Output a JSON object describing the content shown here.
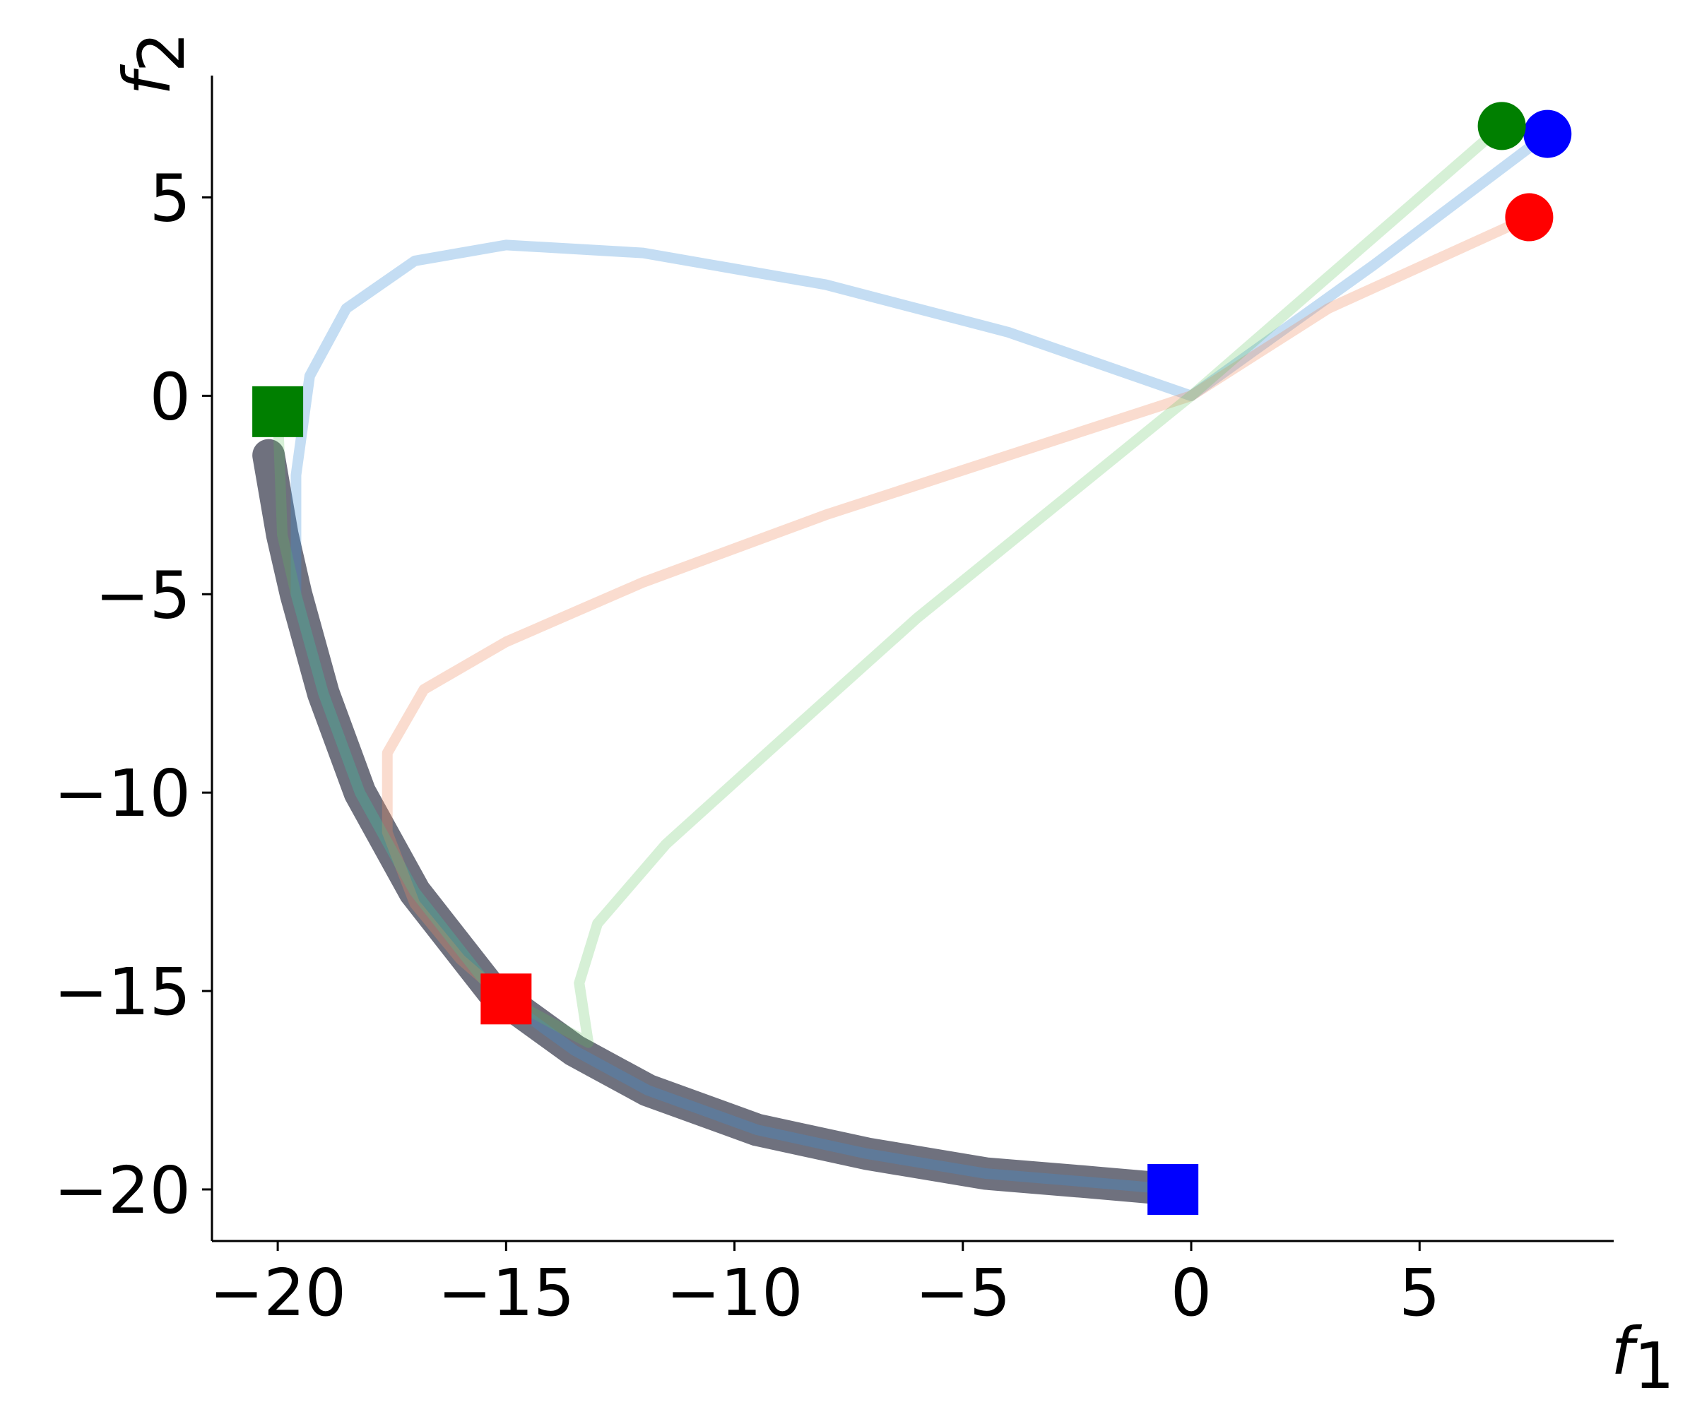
{
  "chart_data": {
    "type": "line",
    "xlabel": {
      "text": "f",
      "subscript": "1"
    },
    "ylabel": {
      "text": "f",
      "subscript": "2"
    },
    "xlim": [
      -21.44,
      9.25
    ],
    "ylim": [
      -21.3,
      8.07
    ],
    "xticks": [
      {
        "value": -20,
        "label": "−20"
      },
      {
        "value": -15,
        "label": "−15"
      },
      {
        "value": -10,
        "label": "−10"
      },
      {
        "value": -5,
        "label": "−5"
      },
      0,
      5
    ],
    "yticks": [
      {
        "value": -20,
        "label": "−20"
      },
      {
        "value": -15,
        "label": "−15"
      },
      {
        "value": -10,
        "label": "−10"
      },
      {
        "value": -5,
        "label": "−5"
      },
      0,
      5
    ],
    "series": [
      {
        "color": "#5f6270",
        "opacity": 0.9,
        "width": 46,
        "x": [
          -20.2,
          -19.9,
          -19.6,
          -19.0,
          -18.2,
          -17.0,
          -15.3,
          -13.5,
          -11.9,
          -9.5,
          -7.1,
          -4.5,
          -2.4,
          -0.4
        ],
        "y": [
          -1.5,
          -3.5,
          -5,
          -7.5,
          -10,
          -12.5,
          -15,
          -16.5,
          -17.5,
          -18.5,
          -19.1,
          -19.6,
          -19.8,
          -20
        ]
      },
      {
        "color": "#3d8fd6",
        "opacity": 0.3,
        "width": 15,
        "start_marker": "circle",
        "end_marker": "square",
        "marker_color": "#0000ff",
        "x": [
          7.8,
          4,
          0,
          -4,
          -8,
          -12,
          -15,
          -17,
          -18.5,
          -19.3,
          -19.6,
          -19.6,
          -19,
          -18.2,
          -17,
          -15.3,
          -13.5,
          -11.9,
          -9.5,
          -7.1,
          -4.5,
          -2.4,
          -0.4
        ],
        "y": [
          6.6,
          3.3,
          0,
          1.6,
          2.8,
          3.6,
          3.8,
          3.4,
          2.2,
          0.5,
          -2,
          -5,
          -7.5,
          -10,
          -12.5,
          -15,
          -16.5,
          -17.5,
          -18.5,
          -19.1,
          -19.6,
          -19.8,
          -20
        ]
      },
      {
        "color": "#f08a60",
        "opacity": 0.3,
        "width": 15,
        "start_marker": "circle",
        "end_marker": "square",
        "marker_color": "#ff0000",
        "x": [
          7.4,
          3,
          0,
          -4,
          -8,
          -12,
          -15,
          -16.8,
          -17.6,
          -17.6,
          -17,
          -16,
          -15
        ],
        "y": [
          4.5,
          2.2,
          0,
          -1.5,
          -3,
          -4.7,
          -6.2,
          -7.4,
          -9,
          -11,
          -12.8,
          -14.2,
          -15.2
        ]
      },
      {
        "color": "#5cc45c",
        "opacity": 0.25,
        "width": 15,
        "start_marker": "circle",
        "end_marker": "square",
        "marker_color": "#007f00",
        "x": [
          6.8,
          3,
          0,
          -3,
          -6,
          -9,
          -11.5,
          -13,
          -13.4,
          -13.2,
          -15.3,
          -17,
          -18.2,
          -19,
          -19.6,
          -19.9,
          -20
        ],
        "y": [
          6.8,
          3,
          0,
          -2.8,
          -5.6,
          -8.7,
          -11.3,
          -13.3,
          -14.8,
          -16.3,
          -15,
          -12.5,
          -10,
          -7.5,
          -5,
          -3.5,
          -0.4
        ]
      }
    ]
  }
}
